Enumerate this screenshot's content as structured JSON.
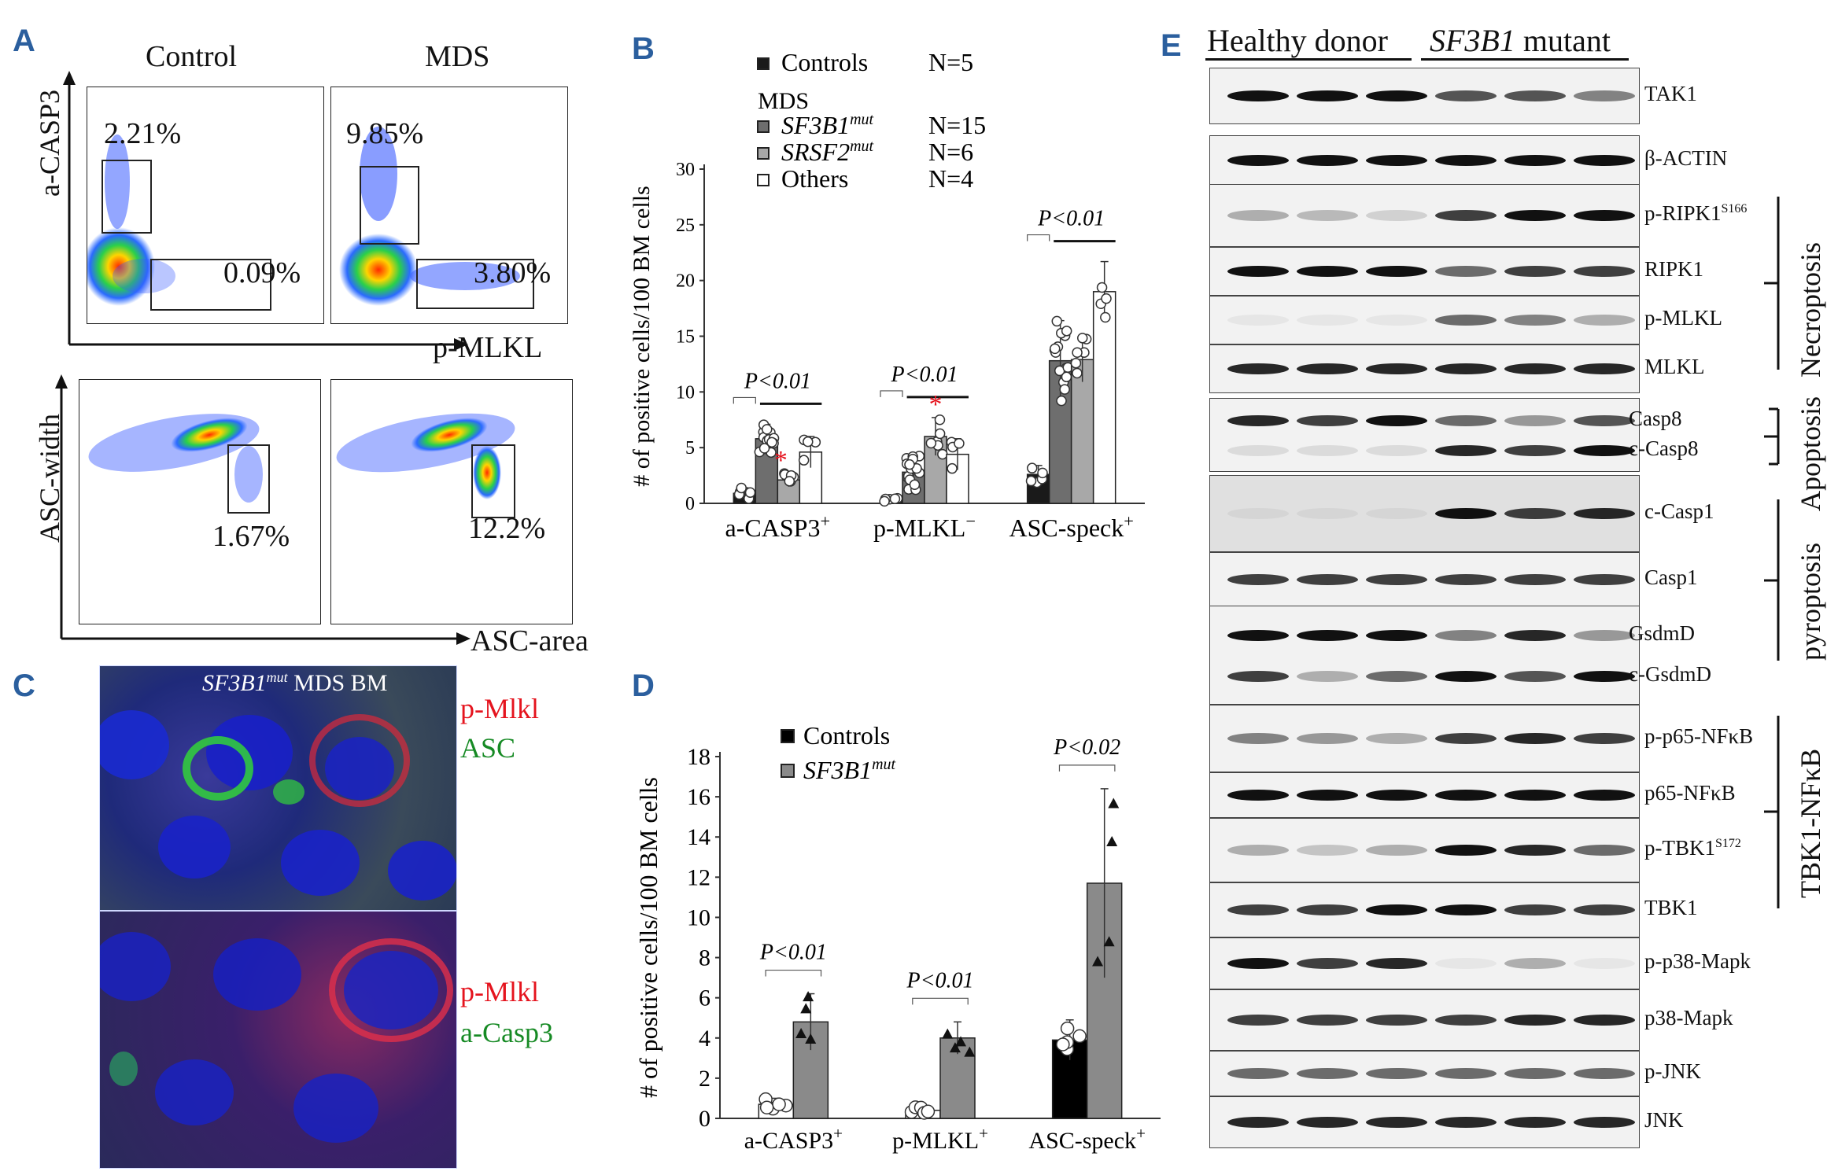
{
  "panels": {
    "a": "A",
    "b": "B",
    "c": "C",
    "d": "D",
    "e": "E"
  },
  "panel_a": {
    "col_control": "Control",
    "col_mds": "MDS",
    "top_ylabel": "a-CASP3",
    "top_xlabel": "p-MLKL",
    "bottom_ylabel": "ASC-width",
    "bottom_xlabel": "ASC-area",
    "ctrl_top_upper": "2.21%",
    "ctrl_top_lower": "0.09%",
    "mds_top_upper": "9.85%",
    "mds_top_lower": "3.80%",
    "ctrl_bottom": "1.67%",
    "mds_bottom": "12.2%"
  },
  "panel_c": {
    "title_gene": "SF3B1",
    "title_sup": "mut",
    "title_rest": " MDS BM",
    "top_label1": "p-Mlkl",
    "top_label2": "ASC",
    "bottom_label1": "p-Mlkl",
    "bottom_label2": "a-Casp3"
  },
  "chart_data": [
    {
      "id": "B",
      "type": "bar",
      "ylabel": "# of positive cells/100 BM cells",
      "ylim": [
        0,
        30
      ],
      "yticks": [
        0,
        5,
        10,
        15,
        20,
        25,
        30
      ],
      "categories": [
        "a-CASP3",
        "p-MLKL",
        "ASC-speck"
      ],
      "category_sup": [
        "+",
        "−",
        "+"
      ],
      "legend_title": "MDS",
      "legend": [
        {
          "name": "Controls",
          "n": "N=5"
        },
        {
          "name": "SF3B1",
          "sup": "mut",
          "n": "N=15"
        },
        {
          "name": "SRSF2",
          "sup": "mut",
          "n": "N=6"
        },
        {
          "name": "Others",
          "n": "N=4"
        }
      ],
      "series": [
        {
          "name": "Controls",
          "values": [
            0.9,
            0.3,
            2.6
          ],
          "sd": [
            0.5,
            0.2,
            0.8
          ],
          "color": "#1a1a1a"
        },
        {
          "name": "SF3B1mut",
          "values": [
            5.8,
            2.8,
            12.8
          ],
          "sd": [
            1.3,
            1.6,
            3.6
          ],
          "color": "#6e6e6e"
        },
        {
          "name": "SRSF2mut",
          "values": [
            2.1,
            6.0,
            12.9
          ],
          "sd": [
            0.6,
            1.7,
            2.0
          ],
          "color": "#a8a8a8"
        },
        {
          "name": "Others",
          "values": [
            4.6,
            4.4,
            19.0
          ],
          "sd": [
            1.4,
            1.4,
            2.7
          ],
          "color": "#ffffff"
        }
      ],
      "pvalues": [
        "P<0.01",
        "P<0.01",
        "P<0.01"
      ],
      "star": "*",
      "star_positions": [
        [
          0,
          2
        ],
        [
          1,
          2
        ]
      ]
    },
    {
      "id": "D",
      "type": "bar",
      "ylabel": "# of positive cells/100 BM cells",
      "ylim": [
        0,
        18
      ],
      "yticks": [
        0,
        2,
        4,
        6,
        8,
        10,
        12,
        14,
        16,
        18
      ],
      "categories": [
        "a-CASP3",
        "p-MLKL",
        "ASC-speck"
      ],
      "category_sup": [
        "+",
        "+",
        "+"
      ],
      "legend": [
        {
          "name": "Controls"
        },
        {
          "name": "SF3B1",
          "sup": "mut"
        }
      ],
      "series": [
        {
          "name": "Controls",
          "values": [
            0.7,
            0.4,
            3.9
          ],
          "sd": [
            0.3,
            0.2,
            1.0
          ],
          "color": "#ffffff"
        },
        {
          "name": "SF3B1mut",
          "values": [
            4.8,
            4.0,
            11.7
          ],
          "sd": [
            1.4,
            0.8,
            4.7
          ],
          "color": "#8a8a8a"
        }
      ],
      "control_fill_last": "#000000",
      "pvalues": [
        "P<0.01",
        "P<0.01",
        "P<0.02"
      ]
    }
  ],
  "panel_e": {
    "header_left": "Healthy donor",
    "header_right_gene": "SF3B1",
    "header_right_rest": " mutant",
    "rows": [
      {
        "labels": [
          "TAK1"
        ],
        "sup": [
          ""
        ]
      },
      {
        "labels": [
          "β-ACTIN"
        ],
        "sup": [
          ""
        ]
      },
      {
        "labels": [
          "p-RIPK1"
        ],
        "sup": [
          "S166"
        ]
      },
      {
        "labels": [
          "RIPK1"
        ],
        "sup": [
          ""
        ]
      },
      {
        "labels": [
          "p-MLKL"
        ],
        "sup": [
          ""
        ]
      },
      {
        "labels": [
          "MLKL"
        ],
        "sup": [
          ""
        ]
      },
      {
        "labels": [
          "Casp8",
          "c-Casp8"
        ],
        "sup": [
          "",
          ""
        ]
      },
      {
        "labels": [
          "c-Casp1"
        ],
        "sup": [
          ""
        ]
      },
      {
        "labels": [
          "Casp1"
        ],
        "sup": [
          ""
        ]
      },
      {
        "labels": [
          "GsdmD",
          "c-GsdmD"
        ],
        "sup": [
          "",
          ""
        ]
      },
      {
        "labels": [
          "p-p65-NFκB"
        ],
        "sup": [
          ""
        ]
      },
      {
        "labels": [
          "p65-NFκB"
        ],
        "sup": [
          ""
        ]
      },
      {
        "labels": [
          "p-TBK1"
        ],
        "sup": [
          "S172"
        ]
      },
      {
        "labels": [
          "TBK1"
        ],
        "sup": [
          ""
        ]
      },
      {
        "labels": [
          "p-p38-Mapk"
        ],
        "sup": [
          ""
        ]
      },
      {
        "labels": [
          "p38-Mapk"
        ],
        "sup": [
          ""
        ]
      },
      {
        "labels": [
          "p-JNK"
        ],
        "sup": [
          ""
        ]
      },
      {
        "labels": [
          "JNK"
        ],
        "sup": [
          ""
        ]
      }
    ],
    "groups": {
      "necroptosis": "Necroptosis",
      "apoptosis": "Apoptosis",
      "pyroptosis": "pyroptosis",
      "tbk1": "TBK1-NFκB"
    }
  }
}
